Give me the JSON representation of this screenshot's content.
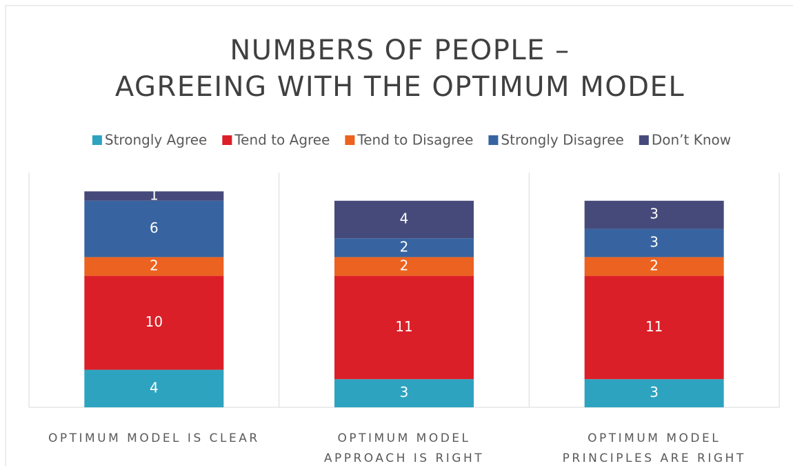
{
  "chart_data": {
    "type": "stacked_bar",
    "title": [
      "NUMBERS OF PEOPLE –",
      "AGREEING WITH THE OPTIMUM MODEL"
    ],
    "categories": [
      [
        "OPTIMUM MODEL IS CLEAR"
      ],
      [
        "OPTIMUM MODEL",
        "APPROACH IS RIGHT"
      ],
      [
        "OPTIMUM MODEL",
        "PRINCIPLES ARE RIGHT"
      ]
    ],
    "series": [
      {
        "name": "Strongly Agree",
        "color": "#2ea3c0",
        "values": [
          4,
          3,
          3
        ]
      },
      {
        "name": "Tend to Agree",
        "color": "#db1f28",
        "values": [
          10,
          11,
          11
        ]
      },
      {
        "name": "Tend to Disagree",
        "color": "#ec6220",
        "values": [
          2,
          2,
          2
        ]
      },
      {
        "name": "Strongly Disagree",
        "color": "#3764a0",
        "values": [
          6,
          2,
          3
        ]
      },
      {
        "name": "Don’t Know",
        "color": "#464a7a",
        "values": [
          1,
          4,
          3
        ]
      }
    ],
    "ylim": [
      0,
      25
    ],
    "legend": "top"
  }
}
